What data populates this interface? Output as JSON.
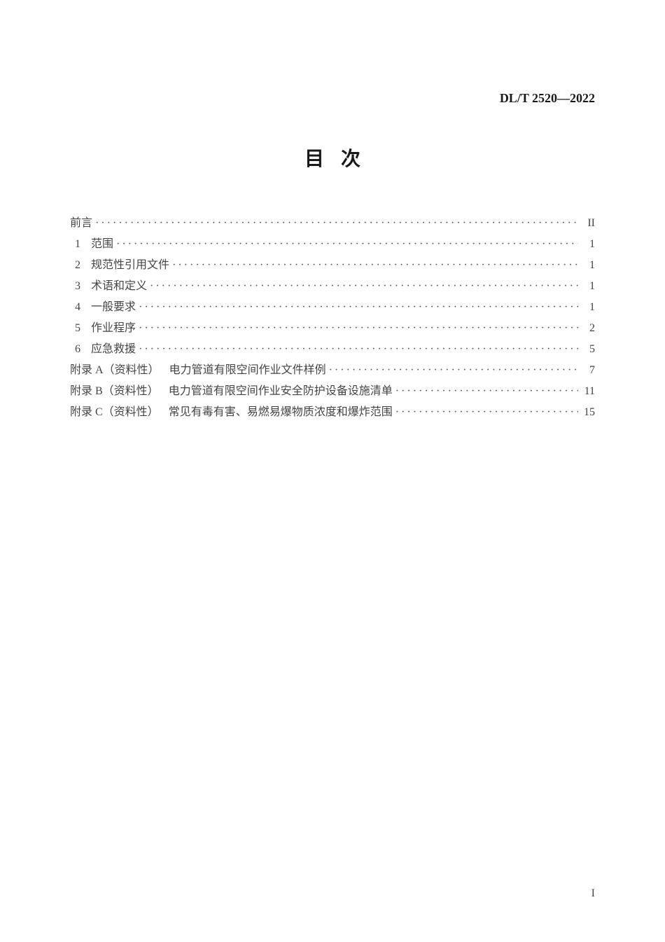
{
  "header": {
    "standard_code": "DL/T 2520—2022"
  },
  "title": "目次",
  "toc": {
    "entries": [
      {
        "num": "",
        "label": "前言",
        "page": "II",
        "type": "plain"
      },
      {
        "num": "1",
        "label": "范围",
        "page": "1",
        "type": "numbered"
      },
      {
        "num": "2",
        "label": "规范性引用文件",
        "page": "1",
        "type": "numbered"
      },
      {
        "num": "3",
        "label": "术语和定义",
        "page": "1",
        "type": "numbered"
      },
      {
        "num": "4",
        "label": "一般要求",
        "page": "1",
        "type": "numbered"
      },
      {
        "num": "5",
        "label": "作业程序",
        "page": "2",
        "type": "numbered"
      },
      {
        "num": "6",
        "label": "应急救援",
        "page": "5",
        "type": "numbered"
      },
      {
        "prefix": "附录 A（资料性）",
        "title": "电力管道有限空间作业文件样例",
        "page": "7",
        "type": "appendix"
      },
      {
        "prefix": "附录 B（资料性）",
        "title": "电力管道有限空间作业安全防护设备设施清单",
        "page": "11",
        "type": "appendix"
      },
      {
        "prefix": "附录 C（资料性）",
        "title": "常见有毒有害、易燃易爆物质浓度和爆炸范围",
        "page": "15",
        "type": "appendix"
      }
    ]
  },
  "footer": {
    "page_number": "I"
  },
  "style": {
    "background_color": "#ffffff",
    "text_color": "#333333",
    "header_color": "#1a1a1a",
    "font_family": "SimSun",
    "title_fontsize": 28,
    "body_fontsize": 16,
    "header_fontsize": 18,
    "line_height": 28
  }
}
